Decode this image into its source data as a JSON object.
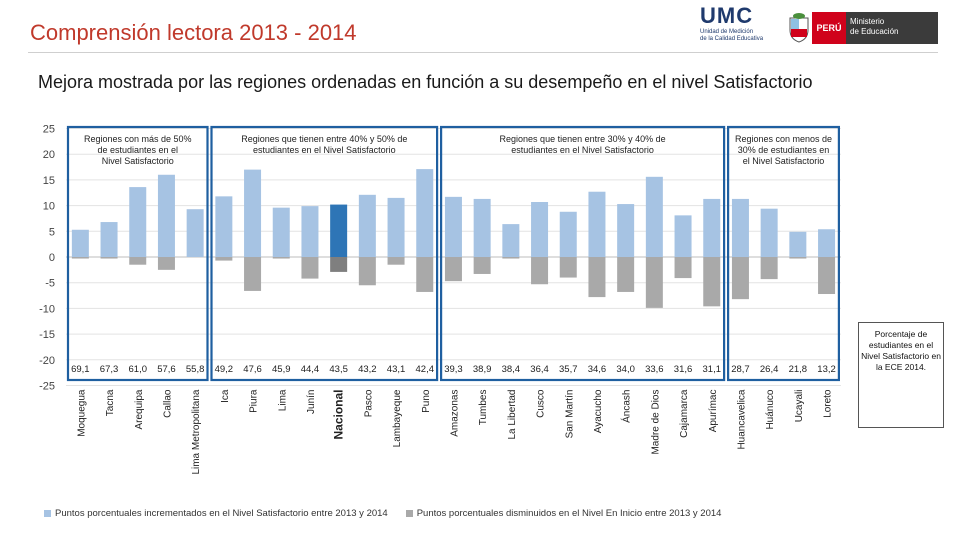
{
  "header": {
    "title": "Comprensión lectora 2013 - 2014",
    "subtitle": "Mejora mostrada por las regiones ordenadas en función a su desempeño en el nivel Satisfactorio",
    "logo_umc": "UMC",
    "logo_umc_sub1": "Unidad de Medición",
    "logo_umc_sub2": "de la Calidad Educativa",
    "logo_peru": "PERÚ",
    "logo_ministerio1": "Ministerio",
    "logo_ministerio2": "de Educación"
  },
  "note": "Porcentaje de estudiantes en el Nivel Satisfactorio en la ECE 2014.",
  "legend": {
    "series1": "Puntos porcentuales incrementados en el Nivel Satisfactorio entre 2013 y 2014",
    "series2": "Puntos porcentuales disminuidos en el Nivel En Inicio entre 2013 y 2014"
  },
  "colors": {
    "title": "#c0392b",
    "increase": "#a6c3e3",
    "decrease": "#a9a9a9",
    "national_increase": "#2e75b6",
    "national_decrease": "#7f7f7f",
    "box": "#1f5fa0"
  },
  "chart_data": {
    "type": "bar",
    "ylim": [
      -25,
      25
    ],
    "yticks": [
      25,
      20,
      15,
      10,
      5,
      0,
      -5,
      -10,
      -15,
      -20,
      -25
    ],
    "categories": [
      "Moquegua",
      "Tacna",
      "Arequipa",
      "Callao",
      "Lima Metropolitana",
      "Ica",
      "Piura",
      "Lima",
      "Junín",
      "Nacional",
      "Pasco",
      "Lambayeque",
      "Puno",
      "Amazonas",
      "Tumbes",
      "La Libertad",
      "Cusco",
      "San Martín",
      "Ayacucho",
      "Áncash",
      "Madre de Dios",
      "Cajamarca",
      "Apurímac",
      "Huancavelica",
      "Huánuco",
      "Ucayali",
      "Loreto"
    ],
    "satisfactorio_2014": [
      "69,1",
      "67,3",
      "61,0",
      "57,6",
      "55,8",
      "49,2",
      "47,6",
      "45,9",
      "44,4",
      "43,5",
      "43,2",
      "43,1",
      "42,4",
      "39,3",
      "38,9",
      "38,4",
      "36,4",
      "35,7",
      "34,6",
      "34,0",
      "33,6",
      "31,6",
      "31,1",
      "28,7",
      "26,4",
      "21,8",
      "13,2"
    ],
    "series": [
      {
        "name": "Puntos porcentuales incrementados en el Nivel Satisfactorio entre 2013 y 2014",
        "values": [
          5.3,
          6.8,
          13.6,
          16.0,
          9.3,
          11.8,
          17.0,
          9.6,
          9.9,
          10.2,
          12.1,
          11.5,
          17.1,
          11.7,
          11.3,
          6.4,
          10.7,
          8.8,
          12.7,
          10.3,
          15.6,
          8.1,
          11.3,
          11.3,
          9.4,
          4.9,
          5.4
        ]
      },
      {
        "name": "Puntos porcentuales disminuidos en el Nivel En Inicio entre 2013 y 2014",
        "values": [
          -0.3,
          -0.3,
          -1.5,
          -2.5,
          0,
          -0.7,
          -6.6,
          -0.3,
          -4.2,
          -2.9,
          -5.5,
          -1.5,
          -6.8,
          -4.7,
          -3.3,
          -0.3,
          -5.3,
          -4.0,
          -7.8,
          -6.8,
          -9.9,
          -4.1,
          -9.6,
          -8.2,
          -4.3,
          -0.3,
          -7.2
        ]
      }
    ],
    "group_labels": [
      "Regiones con más de 50% de estudiantes en el Nivel Satisfactorio",
      "Regiones que tienen entre 40% y 50% de estudiantes en el Nivel Satisfactorio",
      "Regiones que tienen entre 30% y 40% de estudiantes en el Nivel Satisfactorio",
      "Regiones con menos de 30% de estudiantes en el Nivel Satisfactorio"
    ],
    "group_ranges": [
      [
        0,
        4
      ],
      [
        5,
        12
      ],
      [
        13,
        22
      ],
      [
        23,
        26
      ]
    ],
    "highlight": "Nacional"
  }
}
